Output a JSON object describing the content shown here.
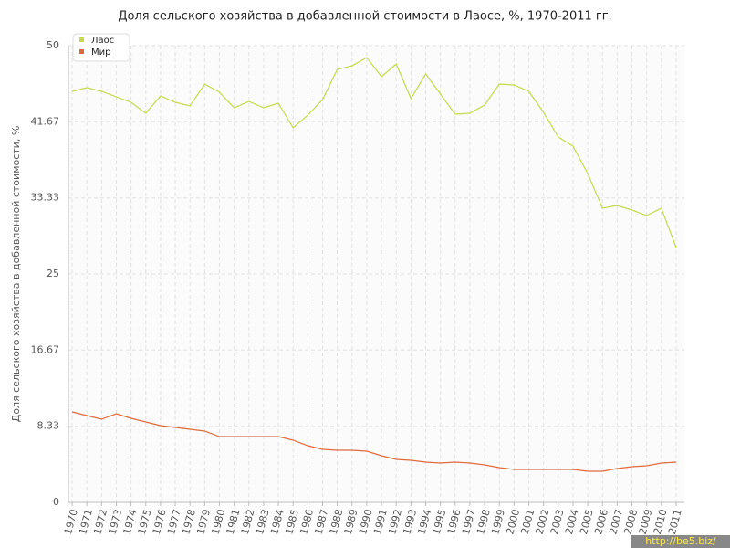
{
  "chart_data": {
    "type": "line",
    "title": "Доля сельского хозяйства в добавленной стоимости в Лаосе, %, 1970-2011 гг.",
    "y_label": "Доля сельского хозяйства в добавленной стоимости, %",
    "watermark": "http://be5.biz/",
    "x": [
      1970,
      1971,
      1972,
      1973,
      1974,
      1975,
      1976,
      1977,
      1978,
      1979,
      1980,
      1981,
      1982,
      1983,
      1984,
      1985,
      1986,
      1987,
      1988,
      1989,
      1990,
      1991,
      1992,
      1993,
      1994,
      1995,
      1996,
      1997,
      1998,
      1999,
      2000,
      2001,
      2002,
      2003,
      2004,
      2005,
      2006,
      2007,
      2008,
      2009,
      2010,
      2011
    ],
    "xticks": [
      1970,
      1971,
      1972,
      1973,
      1974,
      1975,
      1976,
      1977,
      1978,
      1979,
      1980,
      1981,
      1982,
      1983,
      1984,
      1985,
      1986,
      1987,
      1988,
      1989,
      1990,
      1991,
      1992,
      1993,
      1994,
      1995,
      1996,
      1997,
      1998,
      1999,
      2000,
      2001,
      2002,
      2003,
      2004,
      2005,
      2006,
      2007,
      2008,
      2009,
      2010,
      2011
    ],
    "xlim": [
      1969.75,
      2011.56
    ],
    "ylim": [
      0,
      50
    ],
    "yticks": [
      0,
      8.33,
      16.67,
      25,
      33.33,
      41.67,
      50
    ],
    "grid": true,
    "legend": "top-left",
    "series": [
      {
        "name": "Лаос",
        "color": "#c5d94a",
        "values": [
          45.0,
          45.4,
          45.0,
          44.4,
          43.8,
          42.6,
          44.5,
          43.8,
          43.4,
          45.8,
          44.9,
          43.2,
          43.9,
          43.2,
          43.7,
          41.0,
          42.4,
          44.1,
          47.4,
          47.8,
          48.7,
          46.6,
          48.0,
          44.2,
          46.9,
          44.7,
          42.5,
          42.6,
          43.5,
          45.8,
          45.7,
          45.0,
          42.7,
          40.0,
          39.0,
          36.0,
          32.2,
          32.5,
          32.0,
          31.4,
          32.2,
          27.9
        ]
      },
      {
        "name": "Мир",
        "color": "#e06a3c",
        "values": [
          9.9,
          9.5,
          9.1,
          9.7,
          9.2,
          8.8,
          8.4,
          8.2,
          8.0,
          7.8,
          7.2,
          7.2,
          7.2,
          7.2,
          7.2,
          6.8,
          6.2,
          5.8,
          5.7,
          5.7,
          5.6,
          5.1,
          4.7,
          4.6,
          4.4,
          4.3,
          4.4,
          4.3,
          4.1,
          3.8,
          3.6,
          3.6,
          3.6,
          3.6,
          3.6,
          3.4,
          3.4,
          3.7,
          3.9,
          4.0,
          4.3,
          4.4
        ]
      }
    ]
  }
}
